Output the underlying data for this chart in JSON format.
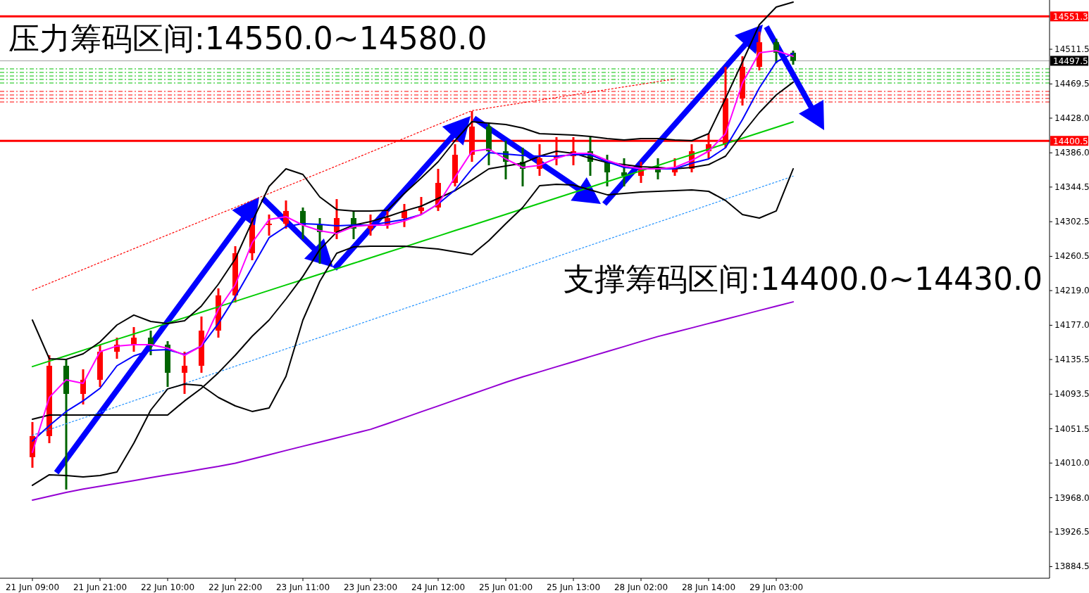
{
  "chart_data": {
    "type": "candlestick",
    "annotations": [
      "压力筹码区间:14550.0~14580.0",
      "支撑筹码区间:14400.0~14430.0"
    ],
    "categories": [
      "21 Jun 09:00",
      null,
      null,
      null,
      "21 Jun 21:00",
      null,
      null,
      null,
      "22 Jun 10:00",
      null,
      null,
      null,
      "22 Jun 22:00",
      null,
      null,
      null,
      "23 Jun 11:00",
      null,
      null,
      null,
      "23 Jun 23:00",
      null,
      null,
      null,
      "24 Jun 12:00",
      null,
      null,
      null,
      "25 Jun 01:00",
      null,
      null,
      null,
      "25 Jun 13:00",
      null,
      null,
      null,
      "28 Jun 02:00",
      null,
      null,
      null,
      "28 Jun 14:00",
      null,
      null,
      null,
      "29 Jun 03:00",
      null
    ],
    "ohlc": [
      [
        14017.1,
        14059.7,
        14004.3,
        14042.7
      ],
      [
        14042.7,
        14140.7,
        14034.1,
        14127.9
      ],
      [
        14127.9,
        14136.4,
        13977.9,
        14093.8
      ],
      [
        14093.8,
        14123.6,
        14081.0,
        14110.9
      ],
      [
        14110.9,
        14153.5,
        14102.3,
        14144.9
      ],
      [
        14144.9,
        14162.0,
        14136.4,
        14153.5
      ],
      [
        14153.5,
        14174.8,
        14144.9,
        14162.0
      ],
      [
        14162.0,
        14170.5,
        14140.7,
        14153.5
      ],
      [
        14153.5,
        14157.7,
        14102.3,
        14119.4
      ],
      [
        14119.4,
        14144.9,
        14093.8,
        14127.9
      ],
      [
        14127.9,
        14187.6,
        14119.4,
        14170.5
      ],
      [
        14170.5,
        14221.7,
        14162.0,
        14213.2
      ],
      [
        14213.2,
        14272.8,
        14204.6,
        14264.3
      ],
      [
        14264.3,
        14306.9,
        14255.8,
        14298.4
      ],
      [
        14298.4,
        14311.2,
        14285.6,
        14300.1
      ],
      [
        14300.1,
        14328.2,
        14294.1,
        14315.5
      ],
      [
        14315.5,
        14319.7,
        14281.4,
        14298.4
      ],
      [
        14298.4,
        14306.9,
        14251.5,
        14289.9
      ],
      [
        14289.9,
        14329.9,
        14281.4,
        14306.9
      ],
      [
        14306.9,
        14315.5,
        14281.4,
        14294.1
      ],
      [
        14294.1,
        14311.2,
        14285.6,
        14298.4
      ],
      [
        14298.4,
        14315.5,
        14294.1,
        14306.9
      ],
      [
        14306.9,
        14324.0,
        14296.0,
        14315.5
      ],
      [
        14315.5,
        14332.5,
        14311.2,
        14319.7
      ],
      [
        14319.7,
        14366.6,
        14315.5,
        14349.5
      ],
      [
        14349.5,
        14396.4,
        14345.3,
        14383.6
      ],
      [
        14383.6,
        14436.5,
        14375.1,
        14417.8
      ],
      [
        14417.8,
        14422.0,
        14370.9,
        14387.9
      ],
      [
        14387.9,
        14400.7,
        14353.8,
        14375.1
      ],
      [
        14375.1,
        14392.2,
        14345.3,
        14366.6
      ],
      [
        14366.6,
        14396.4,
        14358.1,
        14379.4
      ],
      [
        14379.4,
        14405.0,
        14370.9,
        14381.9
      ],
      [
        14381.9,
        14405.0,
        14370.9,
        14387.9
      ],
      [
        14387.9,
        14405.0,
        14358.1,
        14375.1
      ],
      [
        14375.1,
        14383.6,
        14345.3,
        14362.3
      ],
      [
        14362.3,
        14379.4,
        14345.3,
        14358.1
      ],
      [
        14358.1,
        14375.1,
        14349.5,
        14366.6
      ],
      [
        14366.6,
        14379.4,
        14353.8,
        14362.3
      ],
      [
        14362.3,
        14379.4,
        14358.1,
        14366.6
      ],
      [
        14366.6,
        14396.4,
        14362.3,
        14387.9
      ],
      [
        14387.9,
        14409.2,
        14379.4,
        14396.4
      ],
      [
        14396.4,
        14490.2,
        14392.2,
        14451.9
      ],
      [
        14451.9,
        14503.0,
        14443.3,
        14490.2
      ],
      [
        14490.2,
        14532.8,
        14485.9,
        14520.0
      ],
      [
        14520.0,
        14524.3,
        14494.5,
        14507.3
      ],
      [
        14507.3,
        14509.8,
        14492.8,
        14497.5
      ]
    ],
    "colors": [
      "#ff0000",
      "#ff0000",
      "#006400",
      "#ff0000",
      "#ff0000",
      "#ff0000",
      "#ff0000",
      "#006400",
      "#006400",
      "#ff0000",
      "#ff0000",
      "#ff0000",
      "#ff0000",
      "#ff0000",
      "#ff0000",
      "#ff0000",
      "#006400",
      "#006400",
      "#ff0000",
      "#006400",
      "#ff0000",
      "#ff0000",
      "#ff0000",
      "#ff0000",
      "#ff0000",
      "#ff0000",
      "#ff0000",
      "#006400",
      "#006400",
      "#006400",
      "#ff0000",
      "#ff0000",
      "#ff0000",
      "#006400",
      "#006400",
      "#006400",
      "#ff0000",
      "#006400",
      "#ff0000",
      "#ff0000",
      "#ff0000",
      "#ff0000",
      "#ff0000",
      "#ff0000",
      "#006400",
      "#006400"
    ],
    "series": [
      {
        "type": "line",
        "color": "#9400d3",
        "values": [
          13965.1,
          13969.7,
          13974.3,
          13978.4,
          13981.9,
          13985.3,
          13988.7,
          13992.2,
          13995.6,
          13999.0,
          14002.5,
          14005.9,
          14009.8,
          14014.9,
          14020.0,
          14025.2,
          14030.3,
          14035.4,
          14040.5,
          14045.7,
          14050.8,
          14057.8,
          14064.9,
          14072.1,
          14079.2,
          14086.4,
          14093.5,
          14100.7,
          14107.8,
          14114.4,
          14120.5,
          14126.7,
          14132.8,
          14139.0,
          14145.1,
          14151.2,
          14157.4,
          14163.3,
          14168.6,
          14173.8,
          14179.1,
          14184.3,
          14189.6,
          14194.9,
          14200.1,
          14205.4
        ]
      },
      {
        "type": "line",
        "color": "#00cc00",
        "values": [
          14126.9,
          14133.5,
          14140.1,
          14146.7,
          14153.3,
          14159.9,
          14166.4,
          14173.0,
          14179.6,
          14186.2,
          14192.8,
          14199.4,
          14206.0,
          14212.6,
          14219.2,
          14225.8,
          14232.3,
          14238.9,
          14245.5,
          14252.1,
          14258.7,
          14265.3,
          14271.9,
          14278.5,
          14285.1,
          14291.7,
          14298.2,
          14304.8,
          14311.4,
          14318.0,
          14324.6,
          14331.2,
          14337.8,
          14344.4,
          14351.0,
          14357.6,
          14364.1,
          14370.7,
          14377.3,
          14383.9,
          14390.5,
          14397.1,
          14403.7,
          14410.3,
          14416.9,
          14423.5
        ]
      },
      {
        "type": "line",
        "color": "#1e90ff",
        "line_style": "dotted",
        "values": [
          14043.6,
          14050.6,
          14057.6,
          14064.5,
          14071.5,
          14078.5,
          14085.5,
          14092.5,
          14099.4,
          14106.4,
          14113.4,
          14120.4,
          14127.4,
          14134.3,
          14141.3,
          14148.3,
          14155.3,
          14162.3,
          14169.2,
          14176.2,
          14183.2,
          14190.2,
          14197.2,
          14204.1,
          14211.1,
          14218.1,
          14225.1,
          14232.1,
          14239.0,
          14246.0,
          14253.0,
          14260.0,
          14267.0,
          14273.9,
          14280.9,
          14287.9,
          14294.9,
          14301.9,
          14308.8,
          14315.8,
          14322.8,
          14329.8,
          14336.8,
          14343.7,
          14350.7,
          14357.7
        ]
      },
      {
        "type": "line",
        "color": "#ff0000",
        "line_style": "dotted",
        "values": [
          14219.5,
          14227.9,
          14236.2,
          14244.6,
          14253.0,
          14261.4,
          14269.7,
          14278.1,
          14286.5,
          14294.8,
          14303.2,
          14311.6,
          14319.9,
          14328.3,
          14336.7,
          14345.1,
          14353.4,
          14361.8,
          14370.2,
          14378.5,
          14386.9,
          14395.3,
          14403.6,
          14412.0,
          14420.4,
          14428.8,
          14437.1,
          14440.3,
          14443.5,
          14446.7,
          14449.9,
          14453.1,
          14456.3,
          14459.5,
          14462.7,
          14465.9,
          14469.1,
          14472.3,
          14475.5,
          null,
          null,
          null,
          null,
          null,
          null,
          null
        ]
      },
      {
        "type": "line",
        "color": "#000000",
        "values": [
          14183.3,
          14136.4,
          14135.6,
          14142.4,
          14156.9,
          14177.3,
          14189.3,
          14181.6,
          14179.1,
          14182.5,
          14200.4,
          14226.8,
          14257.5,
          14302.7,
          14345.3,
          14366.6,
          14359.8,
          14332.5,
          14317.2,
          14315.5,
          14315.5,
          14316.3,
          14336.8,
          14355.5,
          14375.1,
          14400.7,
          14423.7,
          14422.0,
          14420.3,
          14416.0,
          14409.2,
          14408.4,
          14407.6,
          14405.8,
          14403.3,
          14401.6,
          14403.3,
          14403.3,
          14401.6,
          14400.7,
          14409.2,
          14451.9,
          14496.2,
          14541.4,
          14562.7,
          14568.6
        ]
      },
      {
        "type": "line",
        "color": "#000000",
        "values": [
          13983.0,
          13995.8,
          13994.9,
          13993.2,
          13994.9,
          13999.2,
          14034.1,
          14074.2,
          14099.8,
          14105.7,
          14104.0,
          14089.5,
          14079.3,
          14072.5,
          14076.7,
          14115.1,
          14183.3,
          14230.2,
          14264.3,
          14272.0,
          14272.8,
          14272.8,
          14272.8,
          14271.1,
          14269.4,
          14266.0,
          14262.6,
          14279.6,
          14300.1,
          14319.7,
          14346.1,
          14347.8,
          14347.0,
          14341.0,
          14335.1,
          14336.8,
          14338.5,
          14339.3,
          14340.2,
          14341.0,
          14339.3,
          14328.2,
          14311.2,
          14306.9,
          14315.5,
          14366.6
        ]
      },
      {
        "type": "line",
        "color": "#000000",
        "values": [
          14063.1,
          14068.2,
          14068.2,
          14068.2,
          14068.2,
          14068.2,
          14068.2,
          14068.2,
          14068.2,
          14085.3,
          14100.6,
          14119.4,
          14140.7,
          14163.7,
          14183.3,
          14208.9,
          14236.2,
          14268.6,
          14289.9,
          14298.4,
          14302.7,
          14308.6,
          14315.5,
          14321.4,
          14330.8,
          14340.2,
          14353.0,
          14366.6,
          14370.0,
          14373.4,
          14381.9,
          14387.9,
          14385.4,
          14379.4,
          14374.3,
          14371.7,
          14369.2,
          14368.3,
          14366.6,
          14368.3,
          14371.7,
          14381.9,
          14409.2,
          14434.8,
          14456.1,
          14471.5
        ]
      },
      {
        "type": "line",
        "color": "#0000ff",
        "values": [
          14036.7,
          14055.4,
          14072.5,
          14085.3,
          14100.6,
          14127.9,
          14139.8,
          14146.6,
          14147.5,
          14141.5,
          14151.8,
          14179.1,
          14211.5,
          14247.3,
          14283.1,
          14296.7,
          14300.1,
          14299.3,
          14297.6,
          14298.4,
          14298.4,
          14301.8,
          14305.2,
          14311.2,
          14324.0,
          14341.0,
          14366.6,
          14386.2,
          14384.5,
          14382.8,
          14381.9,
          14381.9,
          14383.6,
          14383.6,
          14375.1,
          14368.3,
          14366.6,
          14366.6,
          14366.6,
          14373.4,
          14378.5,
          14392.2,
          14426.3,
          14464.6,
          14496.2,
          14506.5
        ]
      },
      {
        "type": "line",
        "color": "#ff00ff",
        "values": [
          14023.0,
          14089.5,
          14110.9,
          14106.6,
          14144.9,
          14151.8,
          14153.5,
          14153.5,
          14149.2,
          14140.7,
          14151.8,
          14196.1,
          14225.9,
          14277.1,
          14305.2,
          14308.6,
          14298.4,
          14291.6,
          14288.2,
          14296.7,
          14298.4,
          14298.4,
          14303.5,
          14311.2,
          14324.0,
          14356.4,
          14387.9,
          14390.5,
          14378.5,
          14368.3,
          14370.9,
          14379.4,
          14385.4,
          14385.4,
          14376.8,
          14370.0,
          14366.6,
          14366.6,
          14368.3,
          14376.8,
          14387.9,
          14409.2,
          14470.6,
          14507.3,
          14509.8,
          14503.0
        ]
      }
    ],
    "ref_lines": [
      {
        "axis": "y",
        "value": 14551.3,
        "label": "14551.3",
        "color": "#ff0000"
      },
      {
        "axis": "y",
        "value": 14400.5,
        "label": "14400.5",
        "color": "#ff0000"
      },
      {
        "axis": "y",
        "value": 14497.5,
        "label": "14497.5",
        "color": "#a0a0a0"
      },
      {
        "axis": "y",
        "value": 14487.7,
        "color": "#00c000",
        "line_style": "dashed"
      },
      {
        "axis": "y",
        "value": 14483.4,
        "color": "#00c000",
        "line_style": "dashed"
      },
      {
        "axis": "y",
        "value": 14479.1,
        "color": "#00c000",
        "line_style": "dashed"
      },
      {
        "axis": "y",
        "value": 14474.9,
        "color": "#00c000",
        "line_style": "dashed"
      },
      {
        "axis": "y",
        "value": 14470.6,
        "color": "#00c000",
        "line_style": "dashed"
      },
      {
        "axis": "y",
        "value": 14460.4,
        "color": "#ff0000",
        "line_style": "dashed"
      },
      {
        "axis": "y",
        "value": 14456.1,
        "color": "#ff0000",
        "line_style": "dashed"
      },
      {
        "axis": "y",
        "value": 14451.9,
        "color": "#ff0000",
        "line_style": "dashed"
      },
      {
        "axis": "y",
        "value": 14447.6,
        "color": "#ff0000",
        "line_style": "dashed"
      }
    ],
    "ylim": [
      13870.4,
      14571.2
    ],
    "yticks": [
      {
        "value": 14511.5,
        "label": "14511.5"
      },
      {
        "value": 14469.5,
        "label": "14469.5"
      },
      {
        "value": 14428,
        "label": "14428.0"
      },
      {
        "value": 14386,
        "label": "14386.0"
      },
      {
        "value": 14344.5,
        "label": "14344.5"
      },
      {
        "value": 14302.5,
        "label": "14302.5"
      },
      {
        "value": 14260.5,
        "label": "14260.5"
      },
      {
        "value": 14219,
        "label": "14219.0"
      },
      {
        "value": 14177,
        "label": "14177.0"
      },
      {
        "value": 14135.5,
        "label": "14135.5"
      },
      {
        "value": 14093.5,
        "label": "14093.5"
      },
      {
        "value": 14051.5,
        "label": "14051.5"
      },
      {
        "value": 14010,
        "label": "14010.0"
      },
      {
        "value": 13968,
        "label": "13968.0"
      },
      {
        "value": 13926.5,
        "label": "13926.5"
      },
      {
        "value": 13884.5,
        "label": "13884.5"
      }
    ]
  }
}
